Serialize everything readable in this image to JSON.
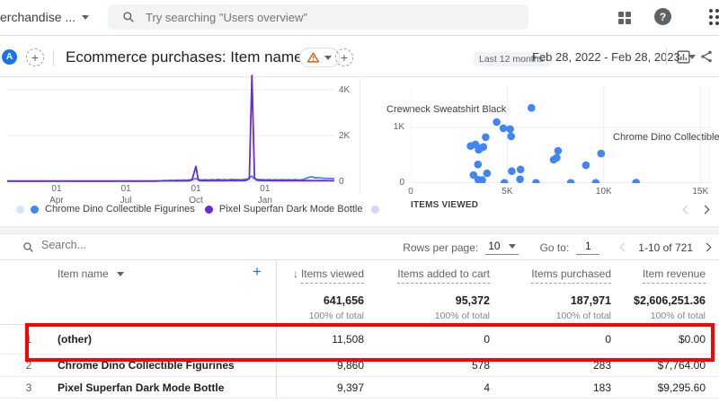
{
  "topbar": {
    "account_label": "erchandise ...",
    "search_placeholder": "Try searching \"Users overview\"",
    "help_label": "?"
  },
  "header": {
    "avatar_letter": "A",
    "add_comparison_label": "+",
    "title": "Ecommerce purchases: Item name",
    "add_report_label": "+",
    "date_badge": "Last 12 months",
    "date_range": "Feb 28, 2022 - Feb 28, 2023"
  },
  "chart_data": [
    {
      "type": "line",
      "title": "",
      "xlabel": "",
      "ylabel": "",
      "grid": true,
      "legend_position": "bottom",
      "ylim": [
        0,
        4470
      ],
      "x_ticks": [
        {
          "line1": "01",
          "line2": "Apr",
          "pos": 0.151
        },
        {
          "line1": "01",
          "line2": "Jul",
          "pos": 0.363
        },
        {
          "line1": "01",
          "line2": "Oct",
          "pos": 0.577
        },
        {
          "line1": "01",
          "line2": "Jan",
          "pos": 0.788
        }
      ],
      "y_ticks": [
        {
          "label": "4K",
          "value": 4000
        },
        {
          "label": "2K",
          "value": 2000
        },
        {
          "label": "0",
          "value": 0
        }
      ],
      "series": [
        {
          "name": "Chrome Dino Collectible Figurines",
          "color": "#4285f4",
          "points": [
            [
              0,
              0
            ],
            [
              44,
              0
            ],
            [
              46,
              6
            ],
            [
              47,
              20
            ],
            [
              48,
              35
            ],
            [
              49,
              28
            ],
            [
              50,
              45
            ],
            [
              51,
              34
            ],
            [
              52,
              55
            ],
            [
              53,
              44
            ],
            [
              54,
              60
            ],
            [
              55,
              48
            ],
            [
              56,
              66
            ],
            [
              57,
              92
            ],
            [
              57.7,
              120
            ],
            [
              58.5,
              70
            ],
            [
              59.5,
              58
            ],
            [
              60.5,
              76
            ],
            [
              61.5,
              55
            ],
            [
              62.5,
              80
            ],
            [
              63.5,
              60
            ],
            [
              64.5,
              85
            ],
            [
              65.5,
              64
            ],
            [
              66.5,
              80
            ],
            [
              67.5,
              60
            ],
            [
              68.5,
              85
            ],
            [
              69.5,
              70
            ],
            [
              70.5,
              80
            ],
            [
              71.5,
              64
            ],
            [
              72.5,
              85
            ],
            [
              73.5,
              92
            ],
            [
              74.3,
              180
            ],
            [
              74.8,
              230
            ],
            [
              75.4,
              120
            ],
            [
              76,
              90
            ],
            [
              77,
              74
            ],
            [
              78,
              80
            ],
            [
              79,
              64
            ],
            [
              80,
              75
            ],
            [
              81,
              60
            ],
            [
              82,
              75
            ],
            [
              83,
              60
            ],
            [
              84,
              70
            ],
            [
              85,
              60
            ],
            [
              86,
              70
            ],
            [
              87,
              58
            ],
            [
              88,
              70
            ],
            [
              89,
              60
            ],
            [
              90,
              66
            ],
            [
              90.8,
              92
            ],
            [
              91.5,
              140
            ],
            [
              92.3,
              175
            ],
            [
              93,
              195
            ],
            [
              93.8,
              165
            ],
            [
              94.6,
              150
            ],
            [
              95.4,
              156
            ],
            [
              96.2,
              140
            ],
            [
              97,
              134
            ],
            [
              98,
              128
            ],
            [
              99,
              120
            ],
            [
              100,
              112
            ]
          ]
        },
        {
          "name": "Pixel Superfan Dark Mode Bottle",
          "color": "#6d28d9",
          "points": [
            [
              0,
              14
            ],
            [
              10,
              14
            ],
            [
              20,
              14
            ],
            [
              30,
              14
            ],
            [
              40,
              14
            ],
            [
              45,
              14
            ],
            [
              48,
              18
            ],
            [
              50,
              22
            ],
            [
              52,
              17
            ],
            [
              54,
              24
            ],
            [
              55.5,
              20
            ],
            [
              56.5,
              60
            ],
            [
              57.7,
              650
            ],
            [
              58.4,
              60
            ],
            [
              59,
              24
            ],
            [
              60,
              30
            ],
            [
              62,
              24
            ],
            [
              64,
              30
            ],
            [
              66,
              25
            ],
            [
              68,
              30
            ],
            [
              70,
              28
            ],
            [
              71,
              34
            ],
            [
              72,
              28
            ],
            [
              73,
              45
            ],
            [
              74,
              120
            ],
            [
              74.8,
              4800
            ],
            [
              75.6,
              150
            ],
            [
              76.2,
              60
            ],
            [
              77,
              40
            ],
            [
              78,
              34
            ],
            [
              80,
              30
            ],
            [
              82,
              27
            ],
            [
              84,
              30
            ],
            [
              86,
              27
            ],
            [
              88,
              30
            ],
            [
              90,
              27
            ],
            [
              92,
              30
            ],
            [
              94,
              27
            ],
            [
              96,
              30
            ],
            [
              98,
              27
            ],
            [
              100,
              24
            ]
          ]
        }
      ]
    },
    {
      "type": "scatter",
      "xlabel": "ITEMS VIEWED",
      "xlim": [
        0,
        15500
      ],
      "ylim": [
        0,
        1740
      ],
      "grid": true,
      "point_color": "#4285f4",
      "x_ticks": [
        {
          "label": "0",
          "value": 0
        },
        {
          "label": "5K",
          "value": 5000
        },
        {
          "label": "10K",
          "value": 10000
        },
        {
          "label": "15K",
          "value": 15000
        }
      ],
      "y_ticks": [
        {
          "label": "1K",
          "value": 1000
        },
        {
          "label": "0",
          "value": 0
        }
      ],
      "points": [
        [
          6250,
          1350
        ],
        [
          4450,
          1095
        ],
        [
          4800,
          985
        ],
        [
          5150,
          970
        ],
        [
          5200,
          840
        ],
        [
          3880,
          825
        ],
        [
          3100,
          665
        ],
        [
          3350,
          695
        ],
        [
          3600,
          625
        ],
        [
          3760,
          650
        ],
        [
          3520,
          600
        ],
        [
          3480,
          335
        ],
        [
          3250,
          145
        ],
        [
          3500,
          60
        ],
        [
          3700,
          55
        ],
        [
          3950,
          175
        ],
        [
          5230,
          215
        ],
        [
          5690,
          245
        ],
        [
          4850,
          5
        ],
        [
          5660,
          70
        ],
        [
          6490,
          5
        ],
        [
          7400,
          420
        ],
        [
          7560,
          455
        ],
        [
          7630,
          580
        ],
        [
          8290,
          5
        ],
        [
          9070,
          320
        ],
        [
          9580,
          5
        ],
        [
          9860,
          530
        ],
        [
          11670,
          10
        ]
      ],
      "annotations": [
        {
          "text": "Crewneck Sweatshirt Black"
        },
        {
          "text": "Chrome Dino Collectible Fi"
        }
      ]
    }
  ],
  "table": {
    "search_placeholder": "Search...",
    "rows_per_page_label": "Rows per page:",
    "rows_per_page_value": "10",
    "go_to_label": "Go to:",
    "go_to_value": "1",
    "page_range": "1-10 of 721",
    "sort_icon": "↓",
    "add_metric_label": "+",
    "columns": {
      "item_name": "Item name",
      "items_viewed": "Items viewed",
      "items_added_to_cart": "Items added to cart",
      "items_purchased": "Items purchased",
      "item_revenue": "Item revenue"
    },
    "totals": {
      "items_viewed": "641,656",
      "items_added_to_cart": "95,372",
      "items_purchased": "187,971",
      "item_revenue": "$2,606,251.36",
      "percent_label": "100% of total"
    },
    "rows": [
      {
        "index": "1",
        "name": "(other)",
        "items_viewed": "11,508",
        "items_added_to_cart": "0",
        "items_purchased": "0",
        "item_revenue": "$0.00"
      },
      {
        "index": "2",
        "name": "Chrome Dino Collectible Figurines",
        "items_viewed": "9,860",
        "items_added_to_cart": "578",
        "items_purchased": "283",
        "item_revenue": "$7,764.00"
      },
      {
        "index": "3",
        "name": "Pixel Superfan Dark Mode Bottle",
        "items_viewed": "9,397",
        "items_added_to_cart": "4",
        "items_purchased": "183",
        "item_revenue": "$9,295.60"
      }
    ]
  },
  "annotation": {
    "highlight_color": "#ff0000",
    "highlighted_row_name": "(other)"
  }
}
